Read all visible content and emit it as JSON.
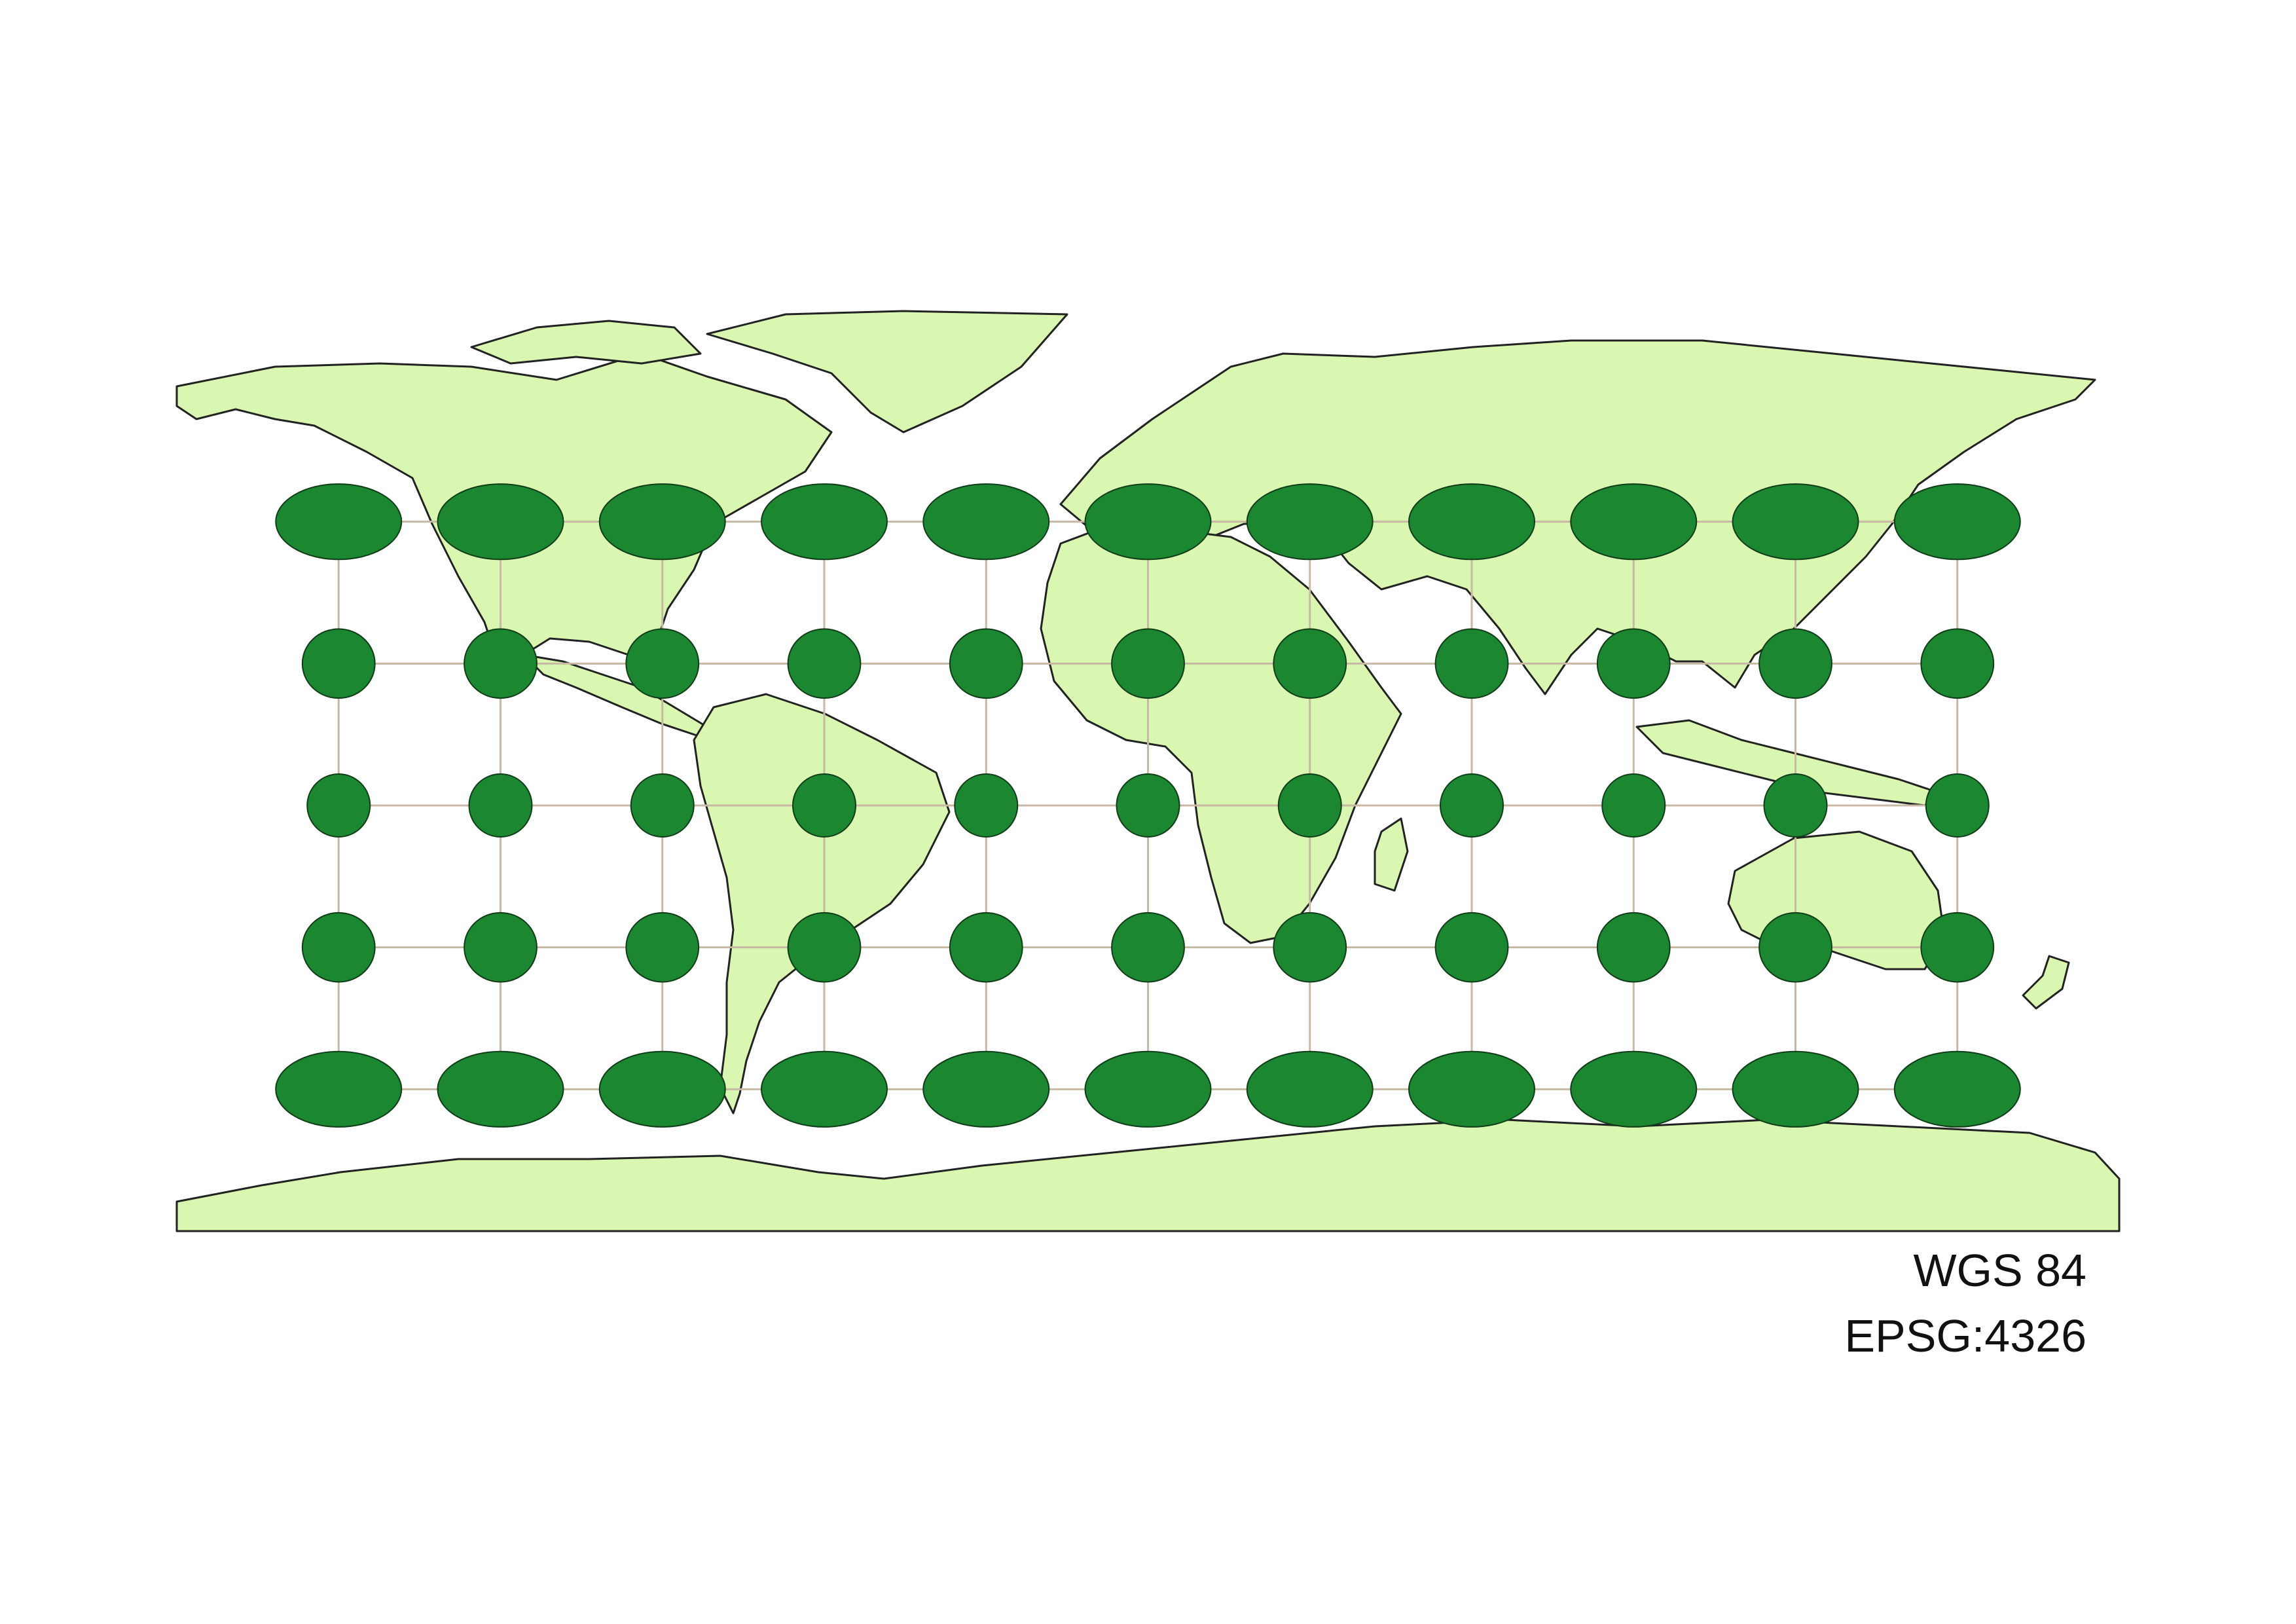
{
  "map": {
    "projection": "WGS 84",
    "crs_code": "EPSG:4326",
    "extent": {
      "lon": [
        -180,
        180
      ],
      "lat": [
        -90,
        90
      ]
    },
    "graticule": {
      "longitudes": [
        -150,
        -120,
        -90,
        -60,
        -30,
        0,
        30,
        60,
        90,
        120,
        150
      ],
      "latitudes": [
        60,
        30,
        0,
        -30,
        -60
      ]
    },
    "tissot_indicatrix": {
      "description_shown": false,
      "latitudes": [
        60,
        30,
        0,
        -30,
        -60
      ],
      "longitudes": [
        -150,
        -120,
        -90,
        -60,
        -30,
        0,
        30,
        60,
        90,
        120,
        150
      ]
    },
    "colors": {
      "land": "#d9f7b0",
      "coastline": "#222222",
      "indicatrix_fill": "#1b8731",
      "indicatrix_stroke": "#0f3d18",
      "graticule": "#c8b9a4",
      "background": "#ffffff"
    }
  }
}
